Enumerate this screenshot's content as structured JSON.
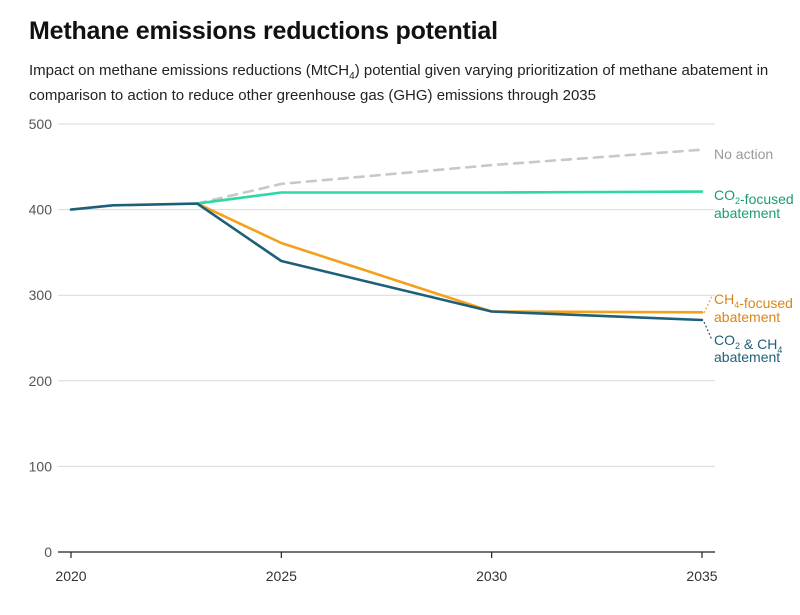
{
  "title": "Methane emissions reductions potential",
  "subtitle_parts": {
    "a": "Impact on methane emissions reductions (MtCH",
    "sub": "4",
    "b": ") potential given varying prioritization of methane abatement in comparison to action to reduce other greenhouse gas (GHG) emissions through 2035"
  },
  "chart_data": {
    "type": "line",
    "title": "Methane emissions reductions potential",
    "ylim": [
      0,
      500
    ],
    "xlim": [
      2020,
      2035
    ],
    "y_ticks": [
      "0",
      "100",
      "200",
      "300",
      "400",
      "500"
    ],
    "x_ticks": [
      "2020",
      "2025",
      "2030",
      "2035"
    ],
    "grid": true,
    "series": [
      {
        "name": "No action",
        "color": "#c8c8c8",
        "dashed": true,
        "label_lines": [
          {
            "a": "No action"
          }
        ],
        "x": [
          2023,
          2025,
          2030,
          2035
        ],
        "y": [
          407,
          430,
          452,
          470
        ]
      },
      {
        "name": "CO2-focused abatement",
        "color": "#2bd9a6",
        "label_color": "#1a9d6c",
        "label_lines": [
          {
            "a": "CO",
            "sub": "2",
            "b": "-focused"
          },
          {
            "a": "abatement"
          }
        ],
        "x": [
          2023,
          2025,
          2030,
          2035
        ],
        "y": [
          407,
          420,
          420,
          421
        ]
      },
      {
        "name": "CH4-focused abatement",
        "color": "#f5a01a",
        "label_color": "#d9861a",
        "label_lines": [
          {
            "a": "CH",
            "sub": "4",
            "b": "-focused"
          },
          {
            "a": "abatement"
          }
        ],
        "x": [
          2023,
          2025,
          2030,
          2035
        ],
        "y": [
          407,
          361,
          281,
          280
        ]
      },
      {
        "name": "CO2 & CH4 abatement",
        "color": "#1f5f79",
        "label_color": "#1f5f79",
        "label_lines": [
          {
            "a": "CO",
            "sub": "2",
            "b": " & CH",
            "sub2": "4"
          },
          {
            "a": "abatement"
          }
        ],
        "x": [
          2020,
          2021,
          2023,
          2025,
          2030,
          2035
        ],
        "y": [
          400,
          405,
          407,
          340,
          281,
          271
        ]
      }
    ]
  }
}
